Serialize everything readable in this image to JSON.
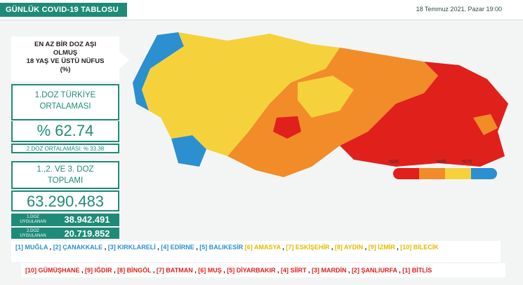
{
  "header": {
    "title": "GÜNLÜK COVID-19 TABLOSU",
    "date": "18 Temmuz 2021, Pazar 19:00"
  },
  "left": {
    "label_lines": [
      "EN AZ BİR DOZ AŞI",
      "OLMUŞ",
      "18 YAŞ VE ÜSTÜ NÜFUS",
      "(%)"
    ],
    "first_dose_avg_lines": [
      "1.DOZ TÜRKİYE",
      "ORTALAMASI"
    ],
    "first_dose_pct": "% 62.74",
    "second_dose_avg": "2.DOZ ORTALAMASI: % 33.38",
    "total_lines": [
      "1.,2. VE 3. DOZ",
      "TOPLAMI"
    ],
    "total_value": "63.290.483",
    "dose1_label_lines": [
      "1.DOZ",
      "UYGULANAN"
    ],
    "dose1_value": "38.942.491",
    "dose2_label_lines": [
      "2.DOZ",
      "UYGULANAN"
    ],
    "dose2_value": "20.719.852"
  },
  "legend": {
    "ticks": [
      "%55",
      "%65",
      "%75"
    ],
    "colors": [
      "#e0201b",
      "#f28c28",
      "#f5d23c",
      "#2b8fd0"
    ]
  },
  "colors": {
    "accent": "#1e8b78",
    "blue": "#2b8fd0",
    "yellow": "#f5d23c",
    "orange": "#f28c28",
    "red": "#e0201b"
  },
  "bottom_blue": [
    "[1] MUĞLA",
    "[2] ÇANAKKALE",
    "[3] KIRKLARELİ",
    "[4] EDİRNE",
    "[5] BALIKESİR"
  ],
  "bottom_yellow": [
    "[6] AMASYA",
    "[7] ESKİŞEHİR",
    "[8] AYDIN",
    "[9] İZMİR",
    "[10] BİLECİK"
  ],
  "bottom_red": [
    "[10] GÜMÜŞHANE",
    "[9] IĞDIR",
    "[8] BİNGÖL",
    "[7] BATMAN",
    "[6] MUŞ",
    "[5] DİYARBAKIR",
    "[4] SİİRT",
    "[3] MARDİN",
    "[2] ŞANLIURFA",
    "[1] BİTLİS"
  ]
}
